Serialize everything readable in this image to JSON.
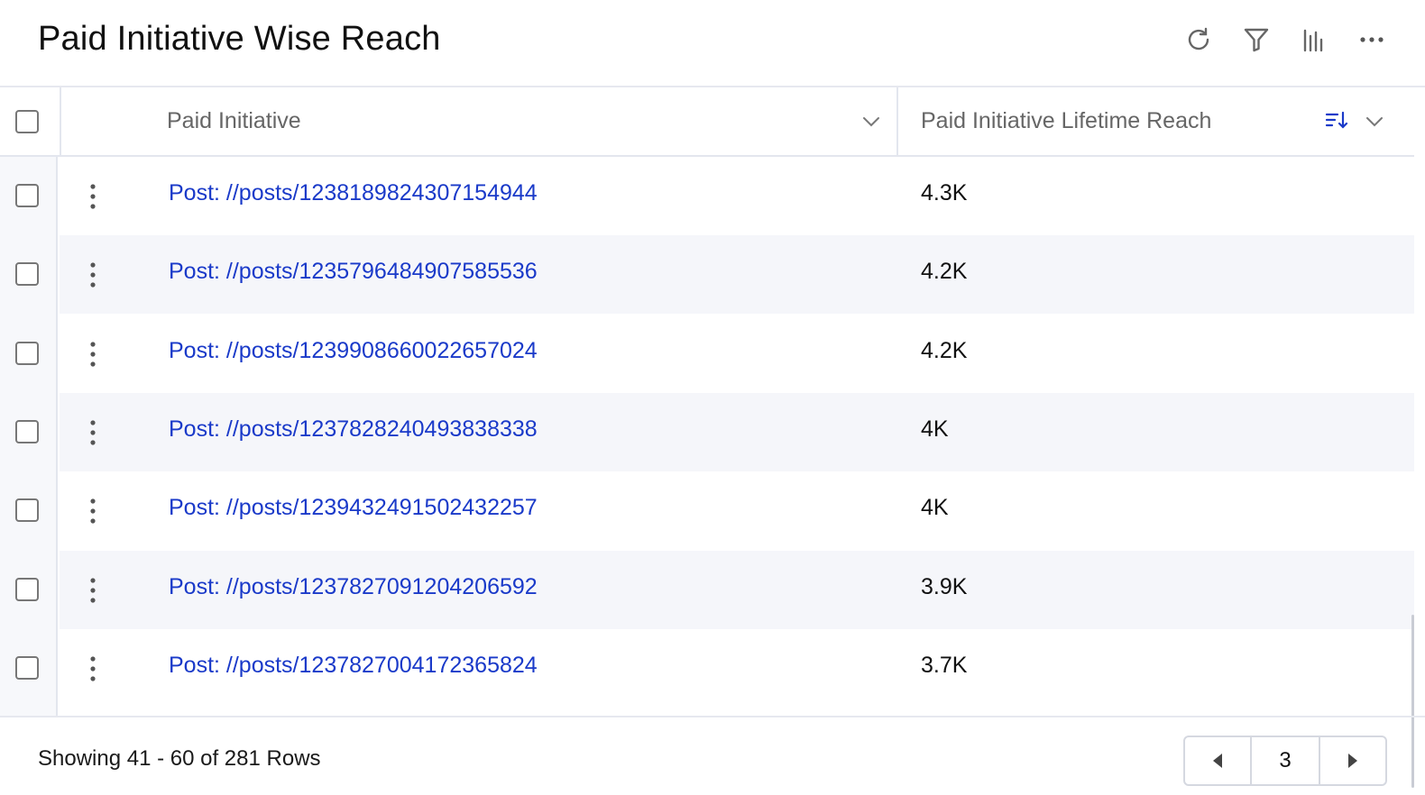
{
  "header": {
    "title": "Paid Initiative Wise Reach",
    "icons": [
      "refresh-icon",
      "filter-icon",
      "bar-chart-icon",
      "more-horizontal-icon"
    ]
  },
  "table": {
    "columns": [
      {
        "label": "Paid Initiative"
      },
      {
        "label": "Paid Initiative Lifetime Reach",
        "sort": "descending"
      }
    ],
    "rows": [
      {
        "initiative": "Post: //posts/1238189824307154944",
        "reach": "4.3K"
      },
      {
        "initiative": "Post: //posts/1235796484907585536",
        "reach": "4.2K"
      },
      {
        "initiative": "Post: //posts/1239908660022657024",
        "reach": "4.2K"
      },
      {
        "initiative": "Post: //posts/1237828240493838338",
        "reach": "4K"
      },
      {
        "initiative": "Post: //posts/1239432491502432257",
        "reach": "4K"
      },
      {
        "initiative": "Post: //posts/1237827091204206592",
        "reach": "3.9K"
      },
      {
        "initiative": "Post: //posts/1237827004172365824",
        "reach": "3.7K"
      }
    ]
  },
  "footer": {
    "rows_info": "Showing 41 - 60 of 281 Rows",
    "current_page": "3"
  },
  "colors": {
    "link": "#1a3ac9",
    "row_alt": "#f5f6fa",
    "border": "#e3e6ee"
  }
}
